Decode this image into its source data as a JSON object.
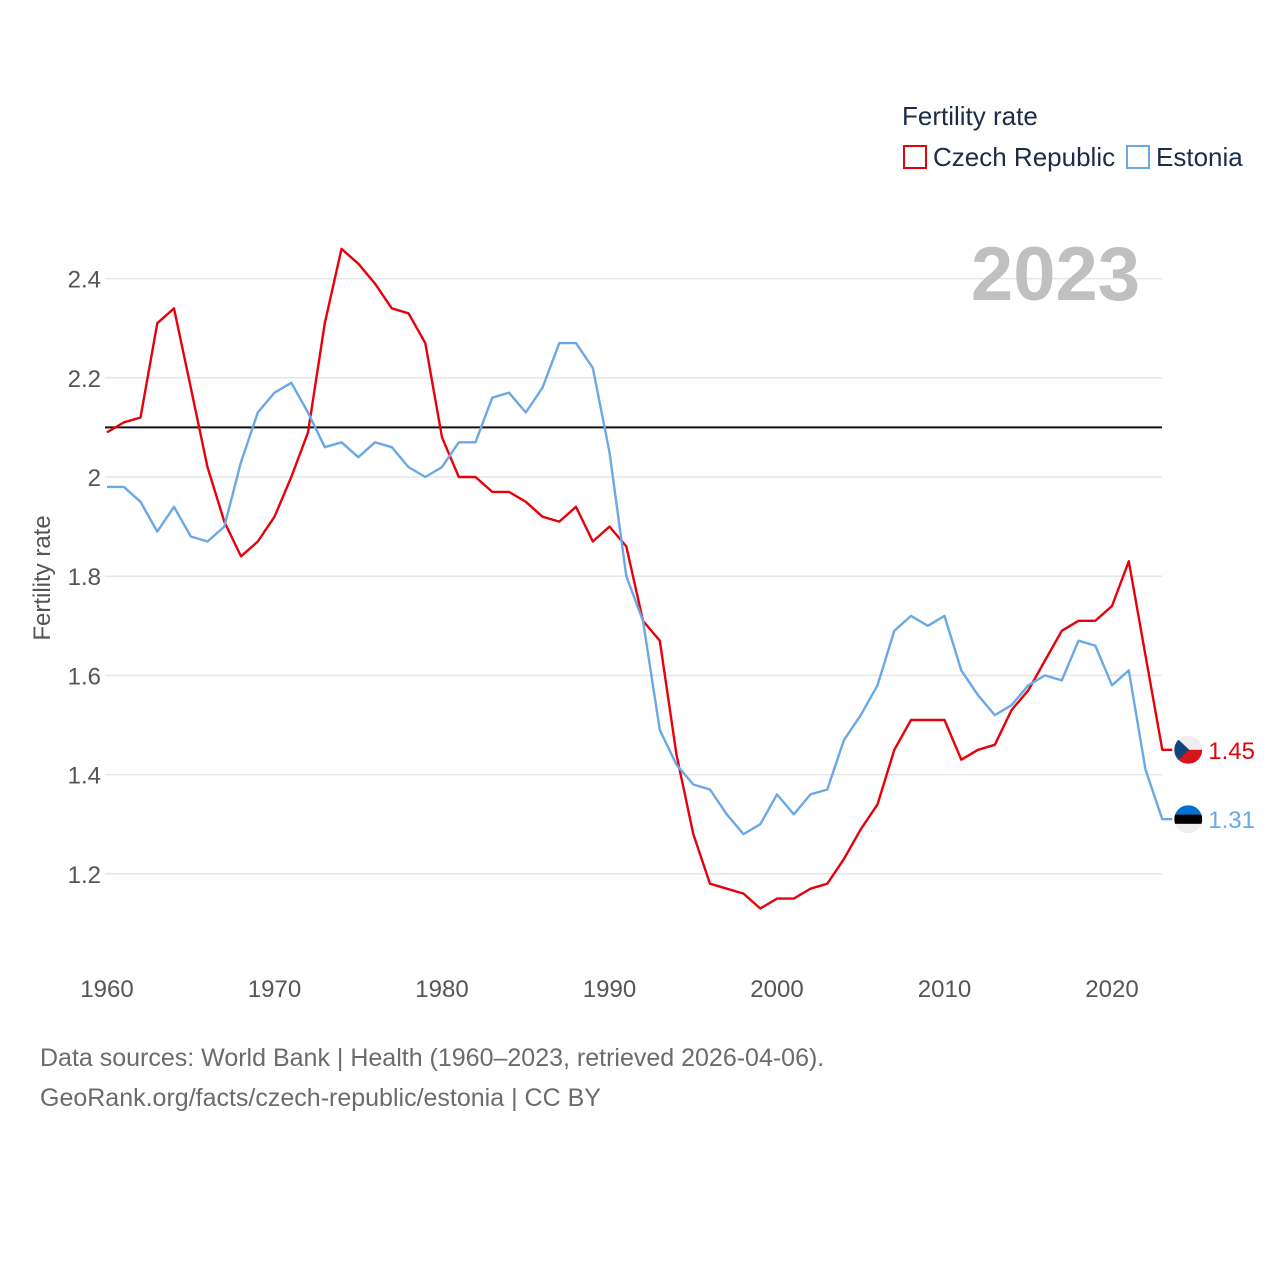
{
  "chart_data": {
    "type": "line",
    "title": "",
    "xlabel": "",
    "ylabel": "Fertility rate",
    "legend_title": "Fertility rate",
    "legend_position": "top-right",
    "year_label": "2023",
    "x_start": 1960,
    "x_end": 2023,
    "xlim": [
      1960,
      2025
    ],
    "ylim": [
      1.05,
      2.5
    ],
    "x_ticks": [
      "1960",
      "1970",
      "1980",
      "1990",
      "2000",
      "2010",
      "2020"
    ],
    "y_ticks": [
      "1.2",
      "1.4",
      "1.6",
      "1.8",
      "2",
      "2.2",
      "2.4"
    ],
    "reference_line": 2.1,
    "grid": true,
    "series": [
      {
        "name": "Czech Republic",
        "color": "#e8000b",
        "flag": "czech-flag-icon",
        "end_label": "1.45",
        "values": [
          2.09,
          2.11,
          2.12,
          2.31,
          2.34,
          2.18,
          2.02,
          1.91,
          1.84,
          1.87,
          1.92,
          2.0,
          2.09,
          2.31,
          2.46,
          2.43,
          2.39,
          2.34,
          2.33,
          2.27,
          2.08,
          2.0,
          2.0,
          1.97,
          1.97,
          1.95,
          1.92,
          1.91,
          1.94,
          1.87,
          1.9,
          1.86,
          1.71,
          1.67,
          1.44,
          1.28,
          1.18,
          1.17,
          1.16,
          1.13,
          1.15,
          1.15,
          1.17,
          1.18,
          1.23,
          1.29,
          1.34,
          1.45,
          1.51,
          1.51,
          1.51,
          1.43,
          1.45,
          1.46,
          1.53,
          1.57,
          1.63,
          1.69,
          1.71,
          1.71,
          1.74,
          1.83,
          1.64,
          1.45
        ]
      },
      {
        "name": "Estonia",
        "color": "#6aa8e6",
        "flag": "estonia-flag-icon",
        "end_label": "1.31",
        "values": [
          1.98,
          1.98,
          1.95,
          1.89,
          1.94,
          1.88,
          1.87,
          1.9,
          2.03,
          2.13,
          2.17,
          2.19,
          2.13,
          2.06,
          2.07,
          2.04,
          2.07,
          2.06,
          2.02,
          2.0,
          2.02,
          2.07,
          2.07,
          2.16,
          2.17,
          2.13,
          2.18,
          2.27,
          2.27,
          2.22,
          2.05,
          1.8,
          1.71,
          1.49,
          1.42,
          1.38,
          1.37,
          1.32,
          1.28,
          1.3,
          1.36,
          1.32,
          1.36,
          1.37,
          1.47,
          1.52,
          1.58,
          1.69,
          1.72,
          1.7,
          1.72,
          1.61,
          1.56,
          1.52,
          1.54,
          1.58,
          1.6,
          1.59,
          1.67,
          1.66,
          1.58,
          1.61,
          1.41,
          1.31
        ]
      }
    ]
  },
  "footer": {
    "source": "Data sources: World Bank | Health (1960–2023, retrieved 2026-04-06).",
    "credit": "GeoRank.org/facts/czech-republic/estonia | CC BY"
  }
}
